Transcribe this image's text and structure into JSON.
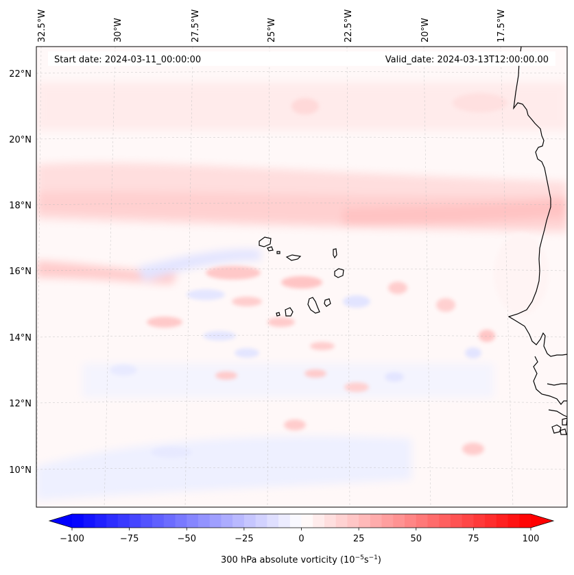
{
  "header": {
    "start_date": "Start date: 2024-03-11_00:00:00",
    "valid_date": "Valid_date: 2024-03-13T12:00:00.00"
  },
  "map": {
    "lon_labels": [
      "32.5°W",
      "30°W",
      "27.5°W",
      "25°W",
      "22.5°W",
      "20°W",
      "17.5°W"
    ],
    "lat_labels": [
      "22°N",
      "20°N",
      "18°N",
      "16°N",
      "14°N",
      "12°N",
      "10°N"
    ],
    "extent": {
      "lon_min": -32.6,
      "lon_max": -15.5,
      "lat_min": 8.9,
      "lat_max": 22.8
    }
  },
  "colorbar": {
    "label_prefix": "300 hPa absolute vorticity (10",
    "label_exp1": "−5",
    "label_mid": "s",
    "label_exp2": "−1",
    "label_suffix": ")",
    "ticks": [
      "−100",
      "−75",
      "−50",
      "−25",
      "0",
      "25",
      "50",
      "75",
      "100"
    ],
    "range": [
      -100,
      100
    ],
    "colors": {
      "negative": "#0000ff",
      "zero": "#ffffff",
      "positive": "#ff0000"
    }
  }
}
